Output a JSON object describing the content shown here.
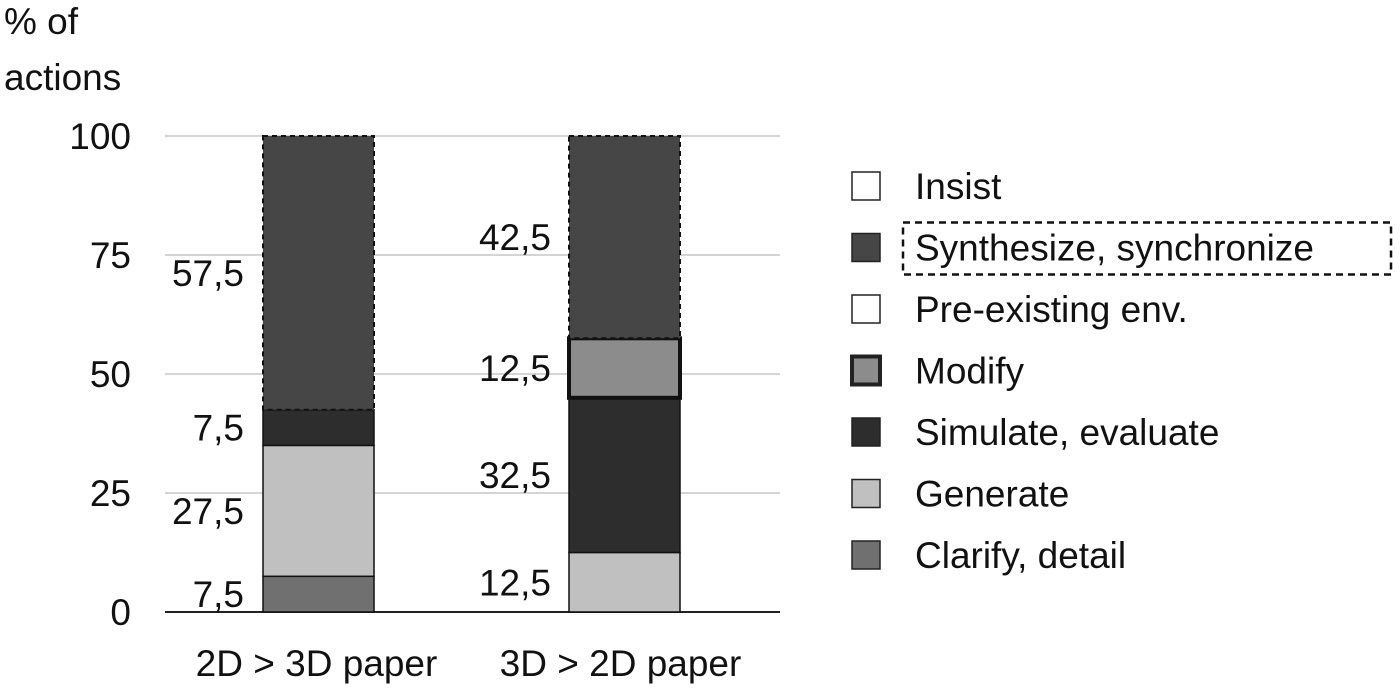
{
  "chart_data": {
    "type": "bar",
    "stacked": true,
    "ylabel": "% of actions",
    "ylabel_lines": [
      "% of",
      "actions"
    ],
    "ylim": [
      0,
      100
    ],
    "yticks": [
      0,
      25,
      50,
      75,
      100
    ],
    "grid": true,
    "legend_placement": "right",
    "categories": [
      "2D > 3D paper",
      "3D > 2D paper"
    ],
    "legend": [
      {
        "name": "Insist",
        "color": "#ffffff",
        "border": "solid"
      },
      {
        "name": "Synthesize, synchronize",
        "color": "#464646",
        "border": "dashed"
      },
      {
        "name": "Pre-existing env.",
        "color": "#ffffff",
        "border": "solid"
      },
      {
        "name": "Modify",
        "color": "#8c8c8c",
        "border": "thick"
      },
      {
        "name": "Simulate, evaluate",
        "color": "#2d2d2d",
        "border": "solid"
      },
      {
        "name": "Generate",
        "color": "#c0c0c0",
        "border": "solid"
      },
      {
        "name": "Clarify, detail",
        "color": "#707070",
        "border": "solid"
      }
    ],
    "series": [
      {
        "name": "Clarify, detail",
        "values": [
          7.5,
          0
        ],
        "labels": [
          "7,5",
          ""
        ]
      },
      {
        "name": "Generate",
        "values": [
          27.5,
          12.5
        ],
        "labels": [
          "27,5",
          "12,5"
        ]
      },
      {
        "name": "Simulate, evaluate",
        "values": [
          7.5,
          32.5
        ],
        "labels": [
          "7,5",
          "32,5"
        ]
      },
      {
        "name": "Modify",
        "values": [
          0,
          12.5
        ],
        "labels": [
          "",
          "12,5"
        ]
      },
      {
        "name": "Pre-existing env.",
        "values": [
          0,
          0
        ],
        "labels": [
          "",
          ""
        ]
      },
      {
        "name": "Synthesize, synchronize",
        "values": [
          57.5,
          42.5
        ],
        "labels": [
          "57,5",
          "42,5"
        ]
      },
      {
        "name": "Insist",
        "values": [
          0,
          0
        ],
        "labels": [
          "",
          ""
        ]
      }
    ]
  }
}
